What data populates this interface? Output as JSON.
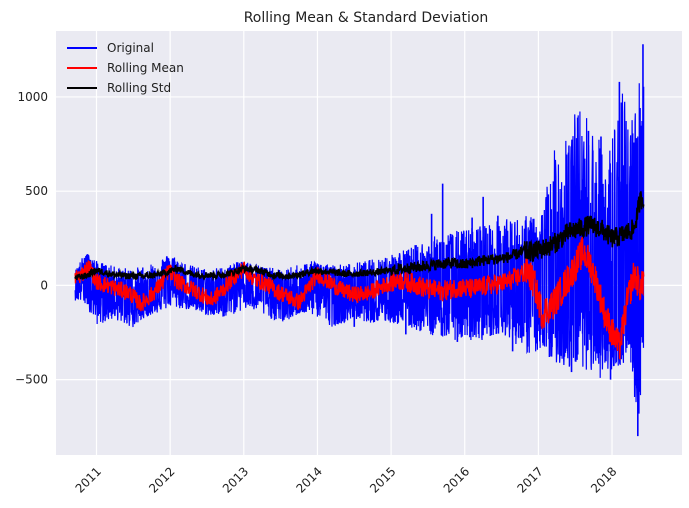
{
  "chart_data": {
    "type": "line",
    "title": "Rolling Mean & Standard Deviation",
    "xlabel": "",
    "ylabel": "",
    "xlim": [
      2010.45,
      2018.95
    ],
    "ylim": [
      -900,
      1350
    ],
    "x_ticks": [
      2011,
      2012,
      2013,
      2014,
      2015,
      2016,
      2017,
      2018
    ],
    "x_tick_labels": [
      "2011",
      "2012",
      "2013",
      "2014",
      "2015",
      "2016",
      "2017",
      "2018"
    ],
    "y_ticks": [
      -500,
      0,
      500,
      1000
    ],
    "y_tick_labels": [
      "−500",
      "0",
      "500",
      "1000"
    ],
    "grid": true,
    "legend_position": "top-left",
    "colors": {
      "background": "#eaeaf2",
      "grid": "#ffffff",
      "text": "#222222"
    },
    "series": [
      {
        "name": "Original",
        "color": "#0000ff",
        "x": [
          2010.71,
          2010.85,
          2011.0,
          2011.25,
          2011.5,
          2011.65,
          2011.8,
          2012.0,
          2012.25,
          2012.5,
          2012.75,
          2012.95,
          2013.1,
          2013.3,
          2013.55,
          2013.75,
          2013.95,
          2014.2,
          2014.5,
          2014.75,
          2015.0,
          2015.25,
          2015.5,
          2015.75,
          2016.0,
          2016.25,
          2016.5,
          2016.75,
          2016.9,
          2017.0,
          2017.2,
          2017.4,
          2017.6,
          2017.8,
          2017.95,
          2018.1,
          2018.25,
          2018.35,
          2018.43
        ],
        "upper": [
          80,
          180,
          130,
          100,
          90,
          110,
          130,
          170,
          110,
          90,
          100,
          130,
          120,
          100,
          80,
          120,
          130,
          110,
          120,
          140,
          170,
          200,
          250,
          280,
          300,
          330,
          350,
          360,
          380,
          330,
          700,
          900,
          950,
          800,
          700,
          1080,
          900,
          1060,
          1280
        ],
        "lower": [
          -80,
          -100,
          -210,
          -180,
          -230,
          -170,
          -150,
          -120,
          -130,
          -160,
          -170,
          -140,
          -130,
          -170,
          -200,
          -150,
          -160,
          -220,
          -180,
          -200,
          -200,
          -230,
          -260,
          -280,
          -300,
          -290,
          -250,
          -330,
          -380,
          -350,
          -400,
          -450,
          -430,
          -500,
          -480,
          -430,
          -400,
          -800,
          -330
        ],
        "peaks": [
          [
            2015.7,
            540
          ],
          [
            2016.25,
            470
          ],
          [
            2016.1,
            360
          ],
          [
            2015.55,
            380
          ],
          [
            2016.45,
            370
          ],
          [
            2014.5,
            -220
          ],
          [
            2015.2,
            -260
          ],
          [
            2015.9,
            -300
          ],
          [
            2016.65,
            -350
          ],
          [
            2017.15,
            -380
          ],
          [
            2017.45,
            -460
          ],
          [
            2017.68,
            820
          ],
          [
            2017.85,
            790
          ],
          [
            2017.45,
            740
          ],
          [
            2018.1,
            1080
          ],
          [
            2017.98,
            -500
          ],
          [
            2018.35,
            -800
          ],
          [
            2018.42,
            1280
          ]
        ]
      },
      {
        "name": "Rolling Mean",
        "color": "#ff0000",
        "x": [
          2010.71,
          2010.8,
          2010.9,
          2011.0,
          2011.15,
          2011.3,
          2011.45,
          2011.6,
          2011.75,
          2011.9,
          2011.98,
          2012.1,
          2012.25,
          2012.4,
          2012.55,
          2012.7,
          2012.85,
          2013.0,
          2013.15,
          2013.3,
          2013.45,
          2013.6,
          2013.75,
          2013.9,
          2014.0,
          2014.15,
          2014.3,
          2014.5,
          2014.7,
          2014.9,
          2015.1,
          2015.3,
          2015.5,
          2015.7,
          2015.9,
          2016.1,
          2016.3,
          2016.5,
          2016.7,
          2016.85,
          2016.95,
          2017.05,
          2017.2,
          2017.35,
          2017.5,
          2017.6,
          2017.7,
          2017.8,
          2017.9,
          2018.0,
          2018.1,
          2018.2,
          2018.3,
          2018.4,
          2018.43
        ],
        "y": [
          40,
          60,
          100,
          20,
          0,
          -20,
          -40,
          -100,
          -50,
          20,
          80,
          20,
          -10,
          -40,
          -80,
          -30,
          40,
          90,
          30,
          10,
          -30,
          -60,
          -90,
          0,
          60,
          20,
          -20,
          -50,
          -40,
          0,
          30,
          10,
          -20,
          -30,
          -10,
          -20,
          0,
          10,
          40,
          80,
          0,
          -150,
          -100,
          0,
          100,
          180,
          120,
          0,
          -150,
          -250,
          -330,
          -100,
          60,
          -20,
          50
        ],
        "band": [
          [
            2010.71,
            2015.0,
            45
          ],
          [
            2015.0,
            2016.8,
            55
          ],
          [
            2016.8,
            2018.43,
            85
          ]
        ]
      },
      {
        "name": "Rolling Std",
        "color": "#000000",
        "x": [
          2010.71,
          2010.85,
          2011.0,
          2011.2,
          2011.4,
          2011.6,
          2011.8,
          2011.95,
          2012.1,
          2012.3,
          2012.5,
          2012.7,
          2012.85,
          2013.0,
          2013.2,
          2013.4,
          2013.6,
          2013.8,
          2013.95,
          2014.2,
          2014.4,
          2014.6,
          2014.8,
          2015.0,
          2015.2,
          2015.4,
          2015.6,
          2015.8,
          2016.0,
          2016.2,
          2016.4,
          2016.6,
          2016.8,
          2016.95,
          2017.1,
          2017.25,
          2017.4,
          2017.55,
          2017.7,
          2017.85,
          2018.0,
          2018.1,
          2018.2,
          2018.3,
          2018.38,
          2018.43
        ],
        "y": [
          40,
          50,
          80,
          60,
          50,
          50,
          55,
          70,
          90,
          60,
          55,
          55,
          70,
          90,
          80,
          55,
          50,
          60,
          80,
          70,
          60,
          65,
          70,
          80,
          90,
          100,
          110,
          120,
          110,
          130,
          140,
          150,
          180,
          180,
          200,
          230,
          280,
          300,
          320,
          300,
          250,
          260,
          280,
          300,
          450,
          470
        ],
        "band": [
          [
            2010.71,
            2015.0,
            18
          ],
          [
            2015.0,
            2016.8,
            30
          ],
          [
            2016.8,
            2018.43,
            55
          ]
        ]
      }
    ]
  }
}
